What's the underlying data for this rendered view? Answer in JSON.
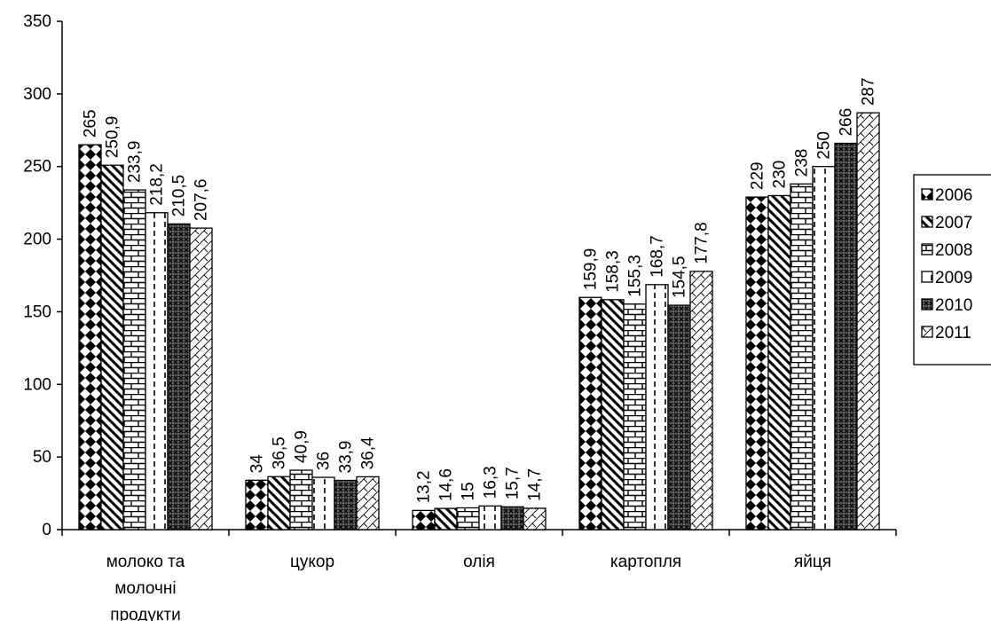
{
  "chart_data": {
    "type": "bar",
    "categories": [
      [
        "молоко та",
        "молочні",
        "продукти"
      ],
      [
        "цукор"
      ],
      [
        "олія"
      ],
      [
        "картопля"
      ],
      [
        "яйця"
      ]
    ],
    "series": [
      {
        "name": "2006",
        "pattern": "diamonds",
        "values": [
          265,
          34,
          13.2,
          159.9,
          229
        ],
        "labels": [
          "265",
          "34",
          "13,2",
          "159,9",
          "229"
        ]
      },
      {
        "name": "2007",
        "pattern": "diagonal",
        "values": [
          250.9,
          36.5,
          14.6,
          158.3,
          230
        ],
        "labels": [
          "250,9",
          "36,5",
          "14,6",
          "158,3",
          "230"
        ]
      },
      {
        "name": "2008",
        "pattern": "bricks",
        "values": [
          233.9,
          40.9,
          15,
          155.3,
          238
        ],
        "labels": [
          "233,9",
          "40,9",
          "15",
          "155,3",
          "238"
        ]
      },
      {
        "name": "2009",
        "pattern": "dashed-vertical",
        "values": [
          218.2,
          36,
          16.3,
          168.7,
          250
        ],
        "labels": [
          "218,2",
          "36",
          "16,3",
          "168,7",
          "250"
        ]
      },
      {
        "name": "2010",
        "pattern": "crosshatch-dark",
        "values": [
          210.5,
          33.9,
          15.7,
          154.5,
          266
        ],
        "labels": [
          "210,5",
          "33,9",
          "15,7",
          "154,5",
          "266"
        ]
      },
      {
        "name": "2011",
        "pattern": "zigzag",
        "values": [
          207.6,
          36.4,
          14.7,
          177.8,
          287
        ],
        "labels": [
          "207,6",
          "36,4",
          "14,7",
          "177,8",
          "287"
        ]
      }
    ],
    "yticks": [
      "0",
      "50",
      "100",
      "150",
      "200",
      "250",
      "300",
      "350"
    ],
    "ylim": [
      0,
      350
    ],
    "legend_position": "right",
    "grid": false
  }
}
